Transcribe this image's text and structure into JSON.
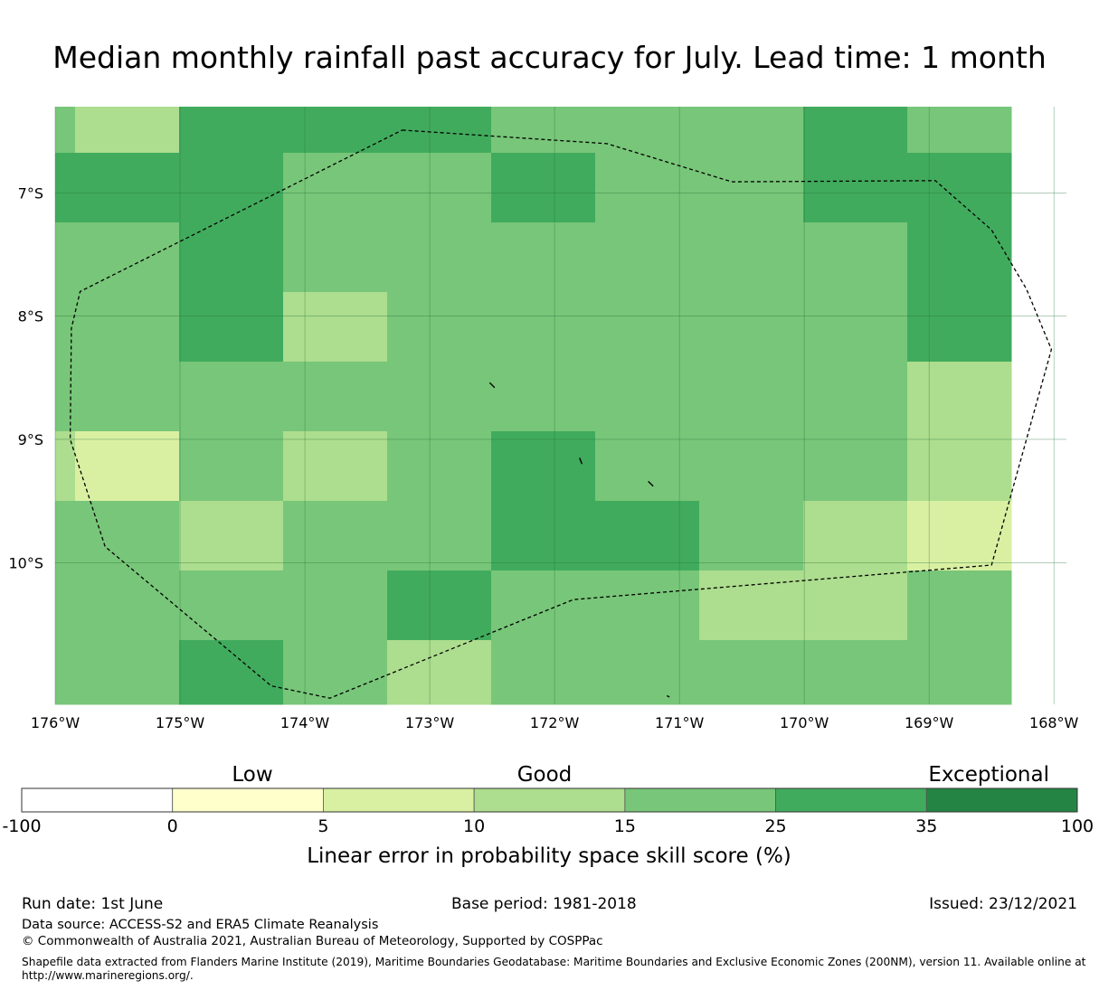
{
  "title": "Median monthly rainfall past accuracy for July. Lead time: 1 month",
  "map": {
    "lon_range": [
      -176.0,
      -167.9
    ],
    "lat_range": [
      -11.15,
      -6.3
    ],
    "cell_size_deg": 0.83,
    "grid_cols": 10,
    "grid_rows": 9,
    "x_ticks": [
      "176°W",
      "175°W",
      "174°W",
      "173°W",
      "172°W",
      "171°W",
      "170°W",
      "169°W",
      "168°W"
    ],
    "x_tick_values": [
      -176,
      -175,
      -174,
      -173,
      -172,
      -171,
      -170,
      -169,
      -168
    ],
    "y_ticks": [
      "7°S",
      "8°S",
      "9°S",
      "10°S"
    ],
    "y_tick_values": [
      -7,
      -8,
      -9,
      -10
    ],
    "grid_lines": true,
    "cells": [
      [
        20,
        12,
        30,
        30,
        30,
        20,
        20,
        20,
        30,
        20
      ],
      [
        30,
        30,
        30,
        20,
        20,
        30,
        20,
        20,
        30,
        30
      ],
      [
        20,
        20,
        30,
        20,
        20,
        20,
        20,
        20,
        20,
        30
      ],
      [
        20,
        20,
        30,
        12,
        20,
        20,
        20,
        20,
        20,
        30
      ],
      [
        20,
        20,
        20,
        20,
        20,
        20,
        20,
        20,
        20,
        12
      ],
      [
        12,
        8,
        20,
        12,
        20,
        30,
        20,
        20,
        20,
        12
      ],
      [
        20,
        20,
        12,
        20,
        20,
        30,
        30,
        20,
        12,
        8
      ],
      [
        20,
        20,
        20,
        20,
        30,
        20,
        20,
        12,
        12,
        20
      ],
      [
        20,
        20,
        30,
        20,
        12,
        20,
        20,
        20,
        20,
        20
      ]
    ],
    "boundary": [
      [
        -173.22,
        -6.49
      ],
      [
        -171.58,
        -6.6
      ],
      [
        -170.58,
        -6.91
      ],
      [
        -168.95,
        -6.9
      ],
      [
        -168.5,
        -7.3
      ],
      [
        -168.22,
        -7.78
      ],
      [
        -168.02,
        -8.27
      ],
      [
        -168.5,
        -10.02
      ],
      [
        -171.85,
        -10.3
      ],
      [
        -173.8,
        -11.1
      ],
      [
        -174.27,
        -11.0
      ],
      [
        -175.6,
        -9.87
      ],
      [
        -175.88,
        -9.0
      ],
      [
        -175.87,
        -8.1
      ],
      [
        -175.8,
        -7.8
      ],
      [
        -173.22,
        -6.49
      ]
    ],
    "islands": [
      [
        [
          -172.52,
          -8.54
        ],
        [
          -172.48,
          -8.58
        ]
      ],
      [
        [
          -171.8,
          -9.15
        ],
        [
          -171.78,
          -9.2
        ]
      ],
      [
        [
          -171.25,
          -9.34
        ],
        [
          -171.21,
          -9.38
        ]
      ],
      [
        [
          -171.1,
          -11.08
        ],
        [
          -171.08,
          -11.09
        ]
      ]
    ]
  },
  "legend": {
    "categories": [
      "Low",
      "Good",
      "Exceptional"
    ],
    "boundaries": [
      -100,
      0,
      5,
      10,
      15,
      25,
      35,
      100
    ],
    "tick_labels": [
      "-100",
      "0",
      "5",
      "10",
      "15",
      "25",
      "35",
      "100"
    ],
    "colors": [
      "#ffffff",
      "#ffffcc",
      "#d9f0a3",
      "#addd8e",
      "#78c679",
      "#41ab5d",
      "#238443"
    ],
    "label": "Linear error in probability space skill score (%)"
  },
  "footer": {
    "run_date": "Run date: 1st June",
    "base_period": "Base period: 1981-2018",
    "issued": "Issued: 23/12/2021",
    "data_source": "Data source: ACCESS-S2 and ERA5 Climate Reanalysis",
    "copyright": "© Commonwealth of Australia 2021, Australian Bureau of Meteorology, Supported by COSPPac",
    "shapefile_line1": "Shapefile data extracted from Flanders Marine Institute (2019), Maritime Boundaries Geodatabase: Maritime Boundaries and Exclusive Economic Zones (200NM), version 11. Available online at",
    "shapefile_line2": "http://www.marineregions.org/."
  }
}
